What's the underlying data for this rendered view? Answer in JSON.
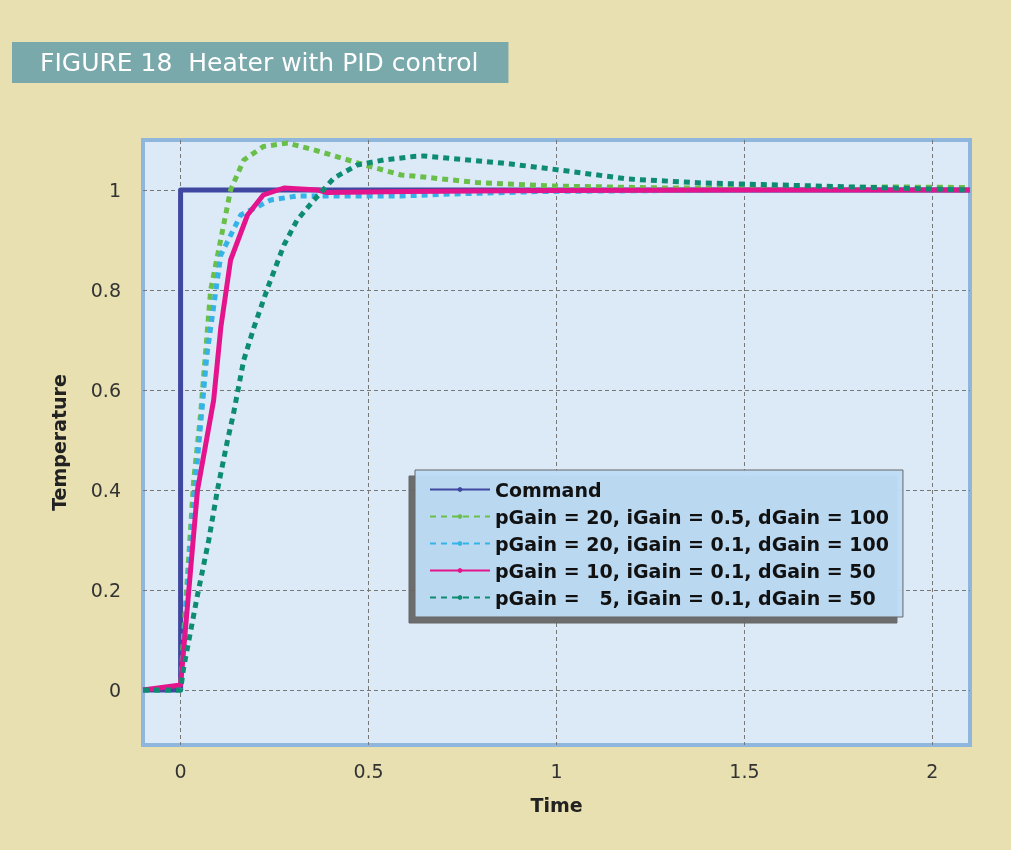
{
  "chart_data": {
    "type": "line",
    "title": "FIGURE 18  Heater with PID control",
    "xlabel": "Time",
    "ylabel": "Temperature",
    "xlim": [
      -0.1,
      2.1
    ],
    "xticks": [
      0,
      0.5,
      1,
      1.5,
      2
    ],
    "ylim": [
      -0.11,
      1.1
    ],
    "yticks": [
      0,
      0.2,
      0.4,
      0.6,
      0.8,
      1
    ],
    "grid": true,
    "legend": "center right",
    "marker": "none",
    "series": [
      {
        "name": "Command",
        "color": "#3f47a0",
        "line_style": "solid",
        "x": [
          -0.1,
          0,
          0,
          2.1
        ],
        "values": [
          0,
          0,
          1,
          1
        ]
      },
      {
        "name": "pGain = 20, iGain = 0.5, dGain = 100",
        "color": "#6abf4b",
        "line_style": "dashed",
        "x": [
          -0.1,
          0,
          0.008,
          0.035,
          0.053,
          0.08,
          0.133,
          0.168,
          0.22,
          0.285,
          0.365,
          0.49,
          0.587,
          0.62,
          0.787,
          0.99,
          1.29,
          1.6,
          1.89,
          2.1
        ],
        "values": [
          0,
          0,
          0.11,
          0.42,
          0.55,
          0.8,
          1.0,
          1.06,
          1.087,
          1.094,
          1.078,
          1.05,
          1.03,
          1.028,
          1.015,
          1.008,
          1.004,
          1.004,
          1.006,
          1.005
        ]
      },
      {
        "name": "pGain = 20, iGain = 0.1, dGain = 100",
        "color": "#35b3e8",
        "line_style": "dashed",
        "x": [
          -0.1,
          0,
          0.02,
          0.04,
          0.07,
          0.107,
          0.16,
          0.24,
          0.31,
          0.435,
          0.587,
          0.72,
          0.96,
          1.3,
          1.7,
          2.1
        ],
        "values": [
          0,
          0,
          0.22,
          0.42,
          0.67,
          0.87,
          0.95,
          0.98,
          0.988,
          0.988,
          0.988,
          0.992,
          0.997,
          0.999,
          1.0,
          1.0
        ]
      },
      {
        "name": "pGain = 10, iGain = 0.1, dGain = 50",
        "color": "#e4148c",
        "line_style": "solid",
        "x": [
          -0.1,
          0,
          0.045,
          0.088,
          0.107,
          0.133,
          0.178,
          0.22,
          0.275,
          0.365,
          0.39,
          0.6,
          1,
          1.5,
          2.1
        ],
        "values": [
          0,
          0.01,
          0.4,
          0.58,
          0.725,
          0.86,
          0.95,
          0.99,
          1.004,
          1.0,
          0.995,
          0.997,
          0.999,
          1.0,
          1.0
        ]
      },
      {
        "name": "pGain =   5, iGain = 0.1, dGain = 50",
        "color": "#0e8c72",
        "line_style": "dashed",
        "x": [
          -0.1,
          0,
          0.008,
          0.045,
          0.075,
          0.098,
          0.125,
          0.14,
          0.168,
          0.195,
          0.232,
          0.275,
          0.31,
          0.355,
          0.408,
          0.47,
          0.54,
          0.62,
          0.647,
          0.855,
          0.987,
          1.19,
          1.39,
          1.59,
          1.89,
          2.1
        ],
        "values": [
          0,
          0,
          0.044,
          0.19,
          0.3,
          0.4,
          0.5,
          0.55,
          0.66,
          0.725,
          0.805,
          0.89,
          0.94,
          0.98,
          1.024,
          1.05,
          1.06,
          1.067,
          1.068,
          1.054,
          1.042,
          1.022,
          1.014,
          1.01,
          1.004,
          1.0
        ]
      }
    ]
  }
}
